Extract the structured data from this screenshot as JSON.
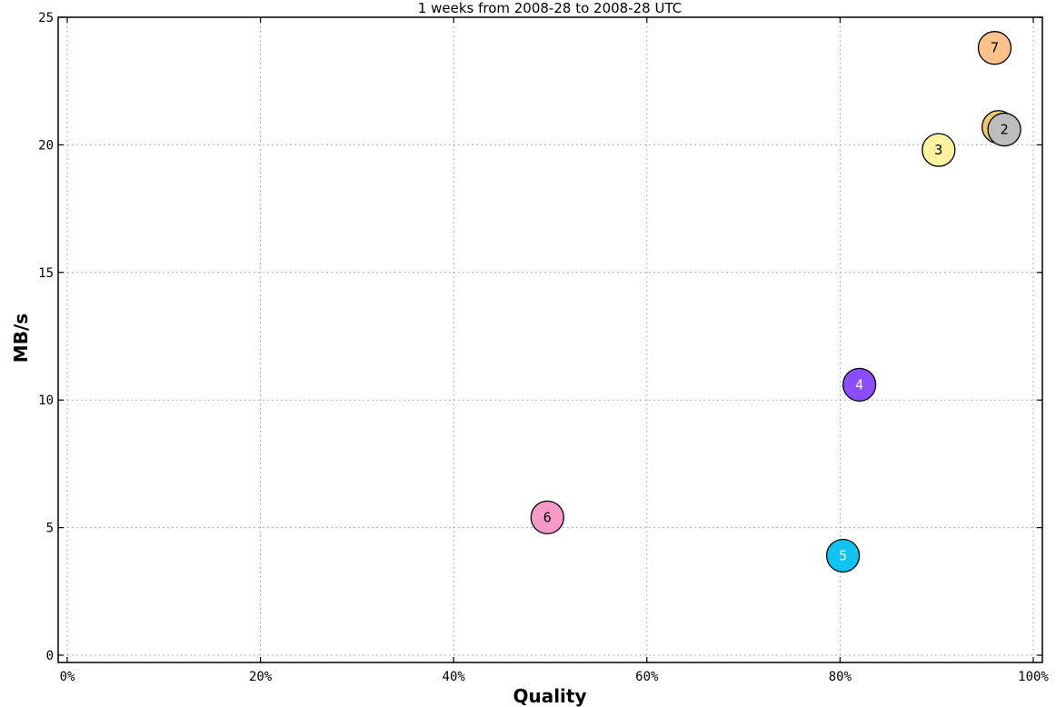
{
  "chart_data": {
    "type": "scatter",
    "title": "1 weeks from 2008-28 to 2008-28 UTC",
    "xlabel": "Quality",
    "ylabel": "MB/s",
    "xlim": [
      0,
      100
    ],
    "ylim": [
      0,
      25
    ],
    "x_ticks": [
      "0%",
      "20%",
      "40%",
      "60%",
      "80%",
      "100%"
    ],
    "y_ticks": [
      "0",
      "5",
      "10",
      "15",
      "20",
      "25"
    ],
    "grid": true,
    "points": [
      {
        "label": "7",
        "x": 96.0,
        "y": 23.8,
        "color": "#fdc18c"
      },
      {
        "label": "1",
        "x": 96.4,
        "y": 20.7,
        "color": "#f0c96a"
      },
      {
        "label": "2",
        "x": 97.0,
        "y": 20.6,
        "color": "#bdbdbd"
      },
      {
        "label": "3",
        "x": 90.2,
        "y": 19.8,
        "color": "#fdf3a0"
      },
      {
        "label": "4",
        "x": 82.0,
        "y": 10.6,
        "color": "#8b4dff"
      },
      {
        "label": "6",
        "x": 49.7,
        "y": 5.4,
        "color": "#f89ac8"
      },
      {
        "label": "5",
        "x": 80.3,
        "y": 3.9,
        "color": "#0fc3f2"
      }
    ]
  }
}
